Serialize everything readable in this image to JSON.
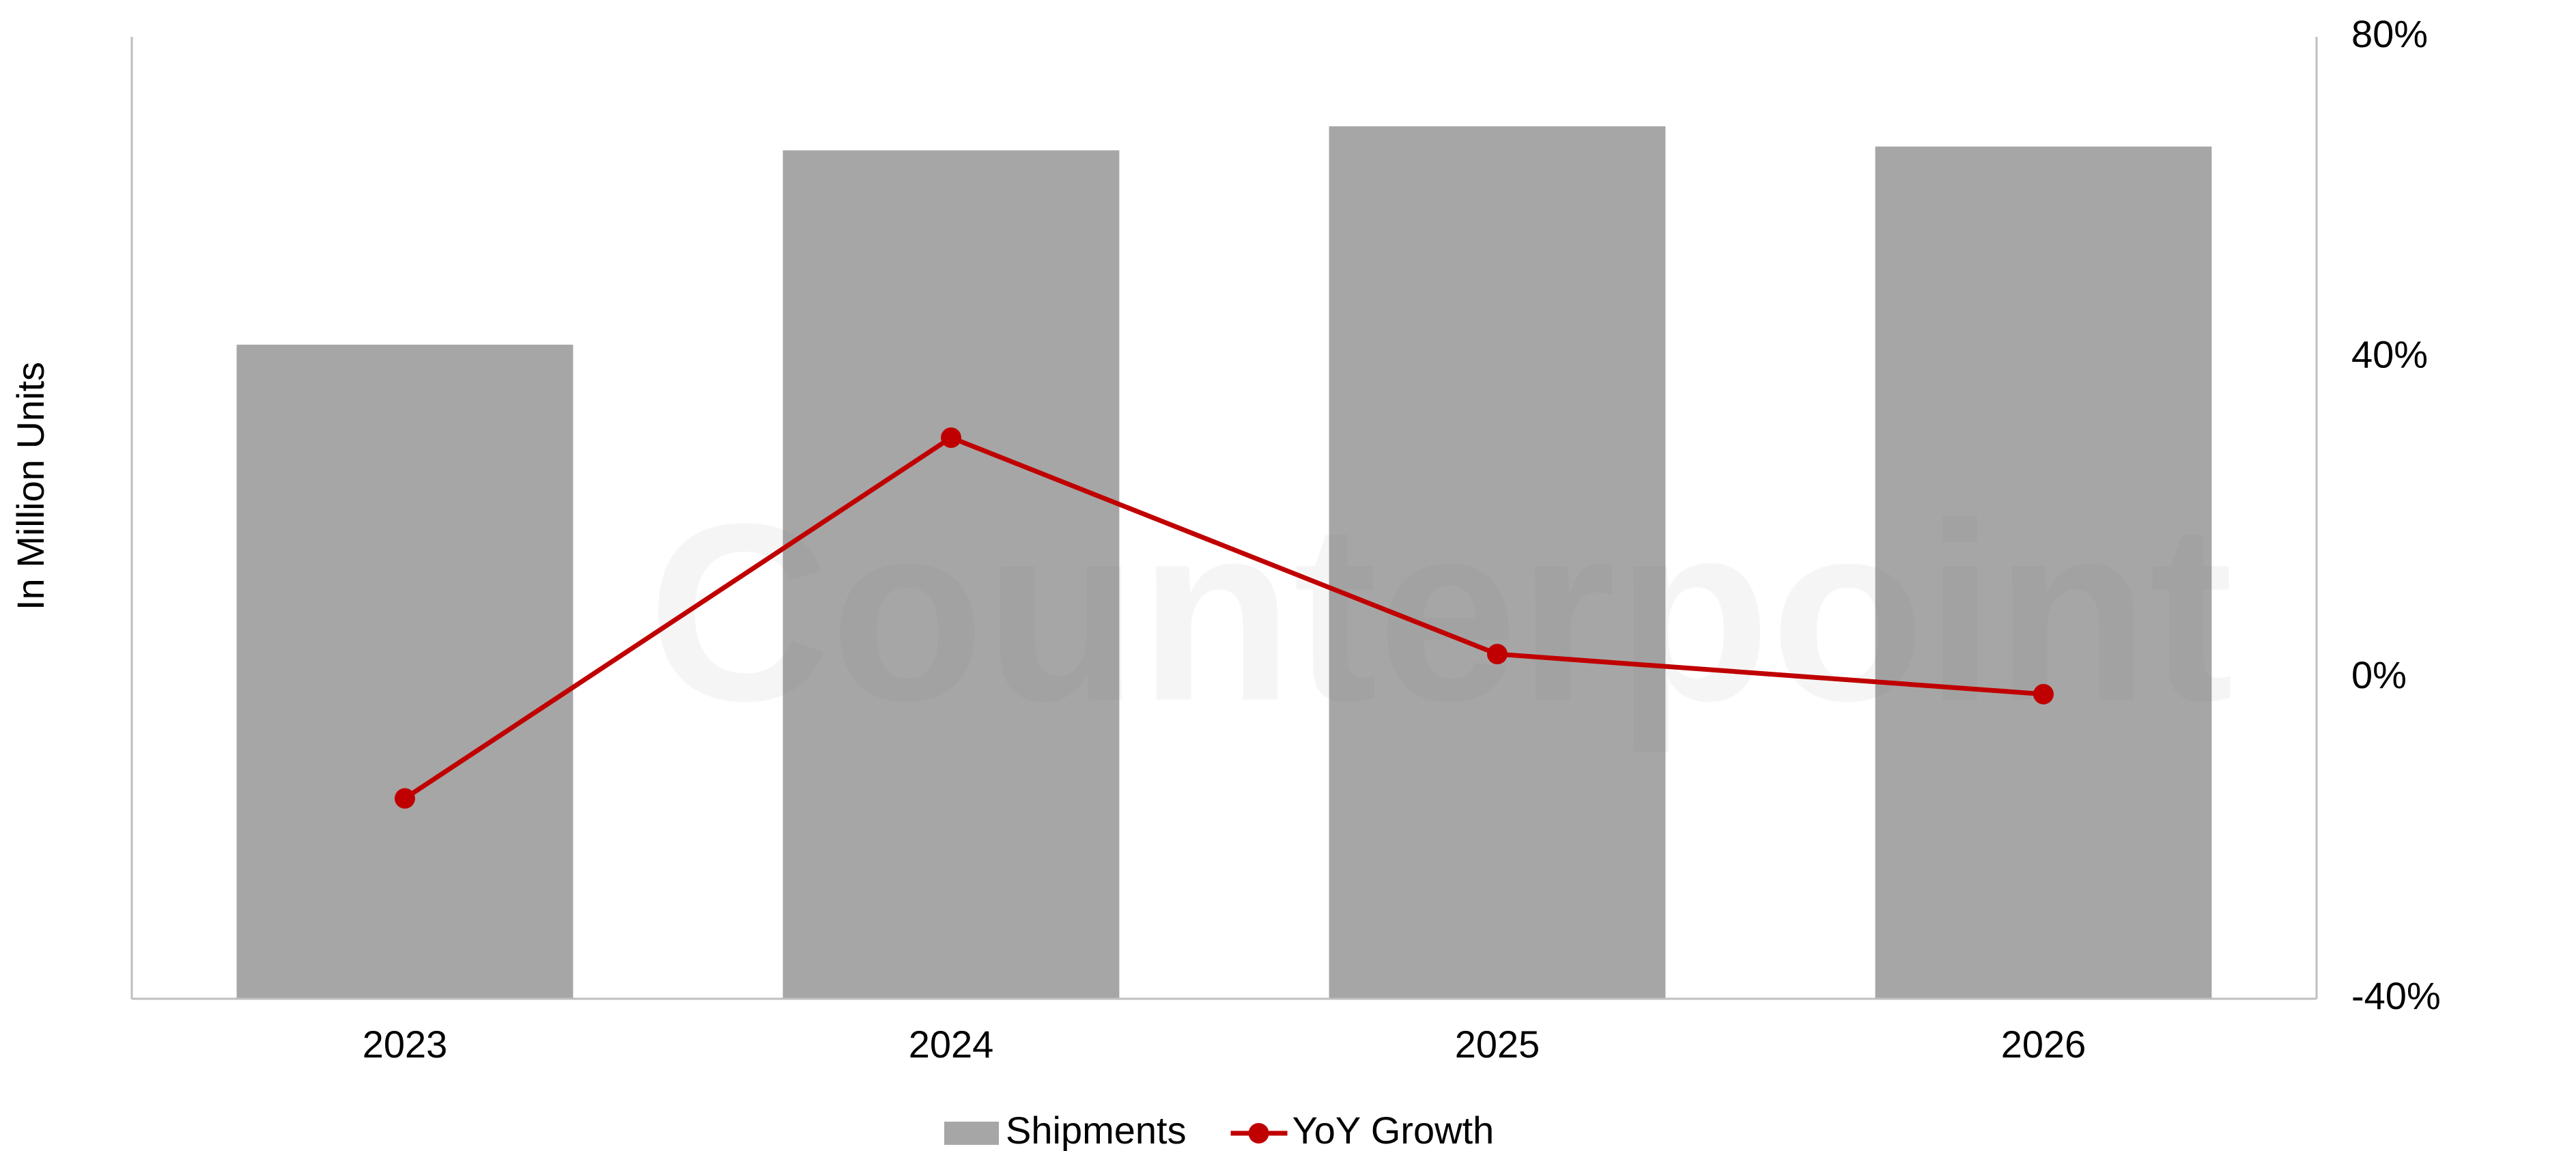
{
  "chart_data": {
    "type": "bar",
    "y_label": "In Million Units",
    "watermark": "Counterpoint",
    "categories": [
      "2023",
      "2024",
      "2025",
      "2026"
    ],
    "series": [
      {
        "name": "Shipments",
        "type": "bar",
        "color": "#a6a6a6",
        "values": [
          68,
          88.2,
          90.7,
          88.6
        ]
      },
      {
        "name": "YoY Growth",
        "type": "line",
        "color": "#c00000",
        "axis": "y2",
        "values": [
          -15,
          30,
          3,
          -2
        ]
      }
    ],
    "ylim": [
      0,
      100
    ],
    "y2lim": [
      -40,
      80
    ],
    "y2ticks": [
      {
        "value": -40,
        "label": "-40%"
      },
      {
        "value": 0,
        "label": "0%"
      },
      {
        "value": 40,
        "label": "40%"
      },
      {
        "value": 80,
        "label": "80%"
      }
    ],
    "legend": "bottom"
  }
}
